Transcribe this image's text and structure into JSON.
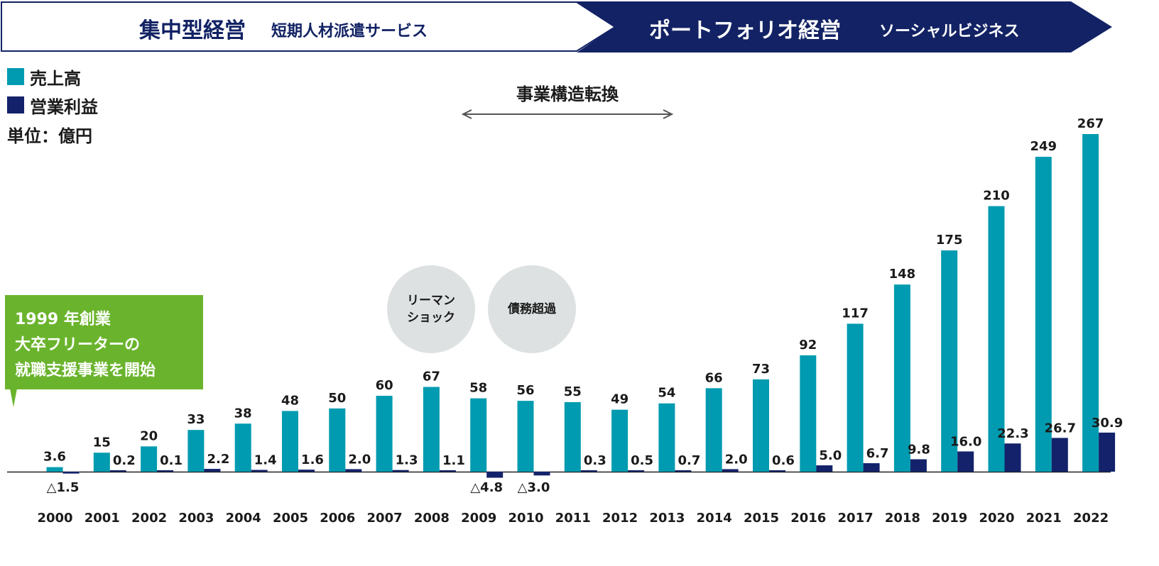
{
  "banner": {
    "left_title": "集中型経営",
    "left_sub": "短期人材派遣サービス",
    "right_title": "ポートフォリオ経営",
    "right_sub": "ソーシャルビジネス"
  },
  "legend": {
    "sales": "売上高",
    "profit": "営業利益",
    "unit": "単位：億円"
  },
  "annotations": {
    "transformation": "事業構造転換",
    "lehman_line1": "リーマン",
    "lehman_line2": "ショック",
    "insolvency": "債務超過",
    "callout_line1": "1999 年創業",
    "callout_line2": "大卒フリーターの",
    "callout_line3": "就職支援事業を開始"
  },
  "colors": {
    "sales": "#009bb0",
    "profit": "#13226a",
    "navy": "#122264",
    "callout": "#6ab42d",
    "circle": "#dde1e2"
  },
  "chart_data": {
    "type": "bar",
    "categories": [
      "2000",
      "2001",
      "2002",
      "2003",
      "2004",
      "2005",
      "2006",
      "2007",
      "2008",
      "2009",
      "2010",
      "2011",
      "2012",
      "2013",
      "2014",
      "2015",
      "2016",
      "2017",
      "2018",
      "2019",
      "2020",
      "2021",
      "2022"
    ],
    "series": [
      {
        "name": "売上高",
        "values": [
          3.6,
          15,
          20,
          33,
          38,
          48,
          50,
          60,
          67,
          58,
          56,
          55,
          49,
          54,
          66,
          73,
          92,
          117,
          148,
          175,
          210,
          249,
          267
        ]
      },
      {
        "name": "営業利益",
        "values": [
          -1.5,
          0.2,
          0.1,
          2.2,
          1.4,
          1.6,
          2.0,
          1.3,
          1.1,
          -4.8,
          -3.0,
          0.3,
          0.5,
          0.7,
          2.0,
          0.6,
          5.0,
          6.7,
          9.8,
          16.0,
          22.3,
          26.7,
          30.9
        ]
      }
    ],
    "value_labels": {
      "sales": [
        "3.6",
        "15",
        "20",
        "33",
        "38",
        "48",
        "50",
        "60",
        "67",
        "58",
        "56",
        "55",
        "49",
        "54",
        "66",
        "73",
        "92",
        "117",
        "148",
        "175",
        "210",
        "249",
        "267"
      ],
      "profit": [
        "△1.5",
        "0.2",
        "0.1",
        "2.2",
        "1.4",
        "1.6",
        "2.0",
        "1.3",
        "1.1",
        "△4.8",
        "△3.0",
        "0.3",
        "0.5",
        "0.7",
        "2.0",
        "0.6",
        "5.0",
        "6.7",
        "9.8",
        "16.0",
        "22.3",
        "26.7",
        "30.9"
      ]
    },
    "xlabel": "",
    "ylabel": "",
    "grid": false,
    "legend_position": "top-left"
  }
}
